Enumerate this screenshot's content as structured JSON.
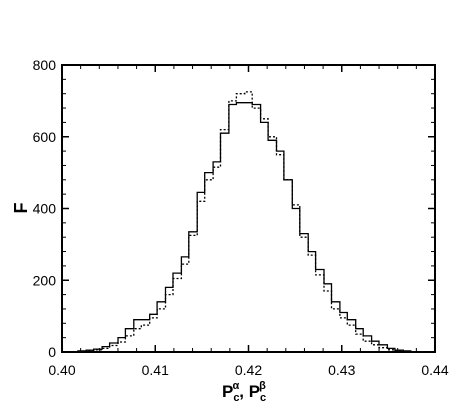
{
  "chart_data": {
    "type": "histogram",
    "xlabel": "P",
    "xlabel_sub_1": "c",
    "xlabel_sup_1": "α",
    "xlabel_sep": ", ",
    "xlabel_sub_2": "c",
    "xlabel_sup_2": "β",
    "ylabel": "F",
    "xlim": [
      0.4,
      0.44
    ],
    "ylim": [
      0,
      800
    ],
    "x_ticks": [
      0.4,
      0.41,
      0.42,
      0.43,
      0.44
    ],
    "x_tick_labels": [
      "0.40",
      "0.41",
      "0.42",
      "0.43",
      "0.44"
    ],
    "y_ticks": [
      0,
      200,
      400,
      600,
      800
    ],
    "y_tick_labels": [
      "0",
      "200",
      "400",
      "600",
      "800"
    ],
    "grid": false,
    "bin_edges": [
      0.4,
      0.4009,
      0.4017,
      0.4026,
      0.4034,
      0.4043,
      0.4051,
      0.406,
      0.4068,
      0.4077,
      0.4085,
      0.4094,
      0.4102,
      0.4111,
      0.4119,
      0.4128,
      0.4136,
      0.4145,
      0.4153,
      0.4162,
      0.417,
      0.4179,
      0.4187,
      0.4196,
      0.4204,
      0.4213,
      0.4221,
      0.423,
      0.4238,
      0.4247,
      0.4255,
      0.4264,
      0.4272,
      0.4281,
      0.4289,
      0.4298,
      0.4306,
      0.4315,
      0.4323,
      0.4332,
      0.434,
      0.4349,
      0.4357,
      0.4366,
      0.4374,
      0.4383,
      0.4391,
      0.44
    ],
    "series": [
      {
        "style": "solid",
        "values": [
          0,
          0,
          3,
          5,
          8,
          15,
          25,
          40,
          65,
          90,
          90,
          105,
          140,
          180,
          220,
          265,
          335,
          445,
          500,
          530,
          610,
          690,
          695,
          695,
          690,
          640,
          590,
          560,
          480,
          400,
          330,
          280,
          230,
          190,
          140,
          110,
          90,
          65,
          45,
          30,
          20,
          10,
          5,
          3,
          1,
          0,
          0
        ]
      },
      {
        "style": "dotted",
        "values": [
          0,
          0,
          2,
          4,
          6,
          10,
          18,
          28,
          45,
          65,
          75,
          95,
          120,
          160,
          205,
          245,
          325,
          420,
          480,
          515,
          620,
          700,
          720,
          725,
          680,
          650,
          600,
          550,
          480,
          410,
          320,
          270,
          215,
          170,
          120,
          95,
          75,
          50,
          30,
          20,
          12,
          6,
          3,
          2,
          1,
          0,
          0
        ]
      }
    ]
  }
}
